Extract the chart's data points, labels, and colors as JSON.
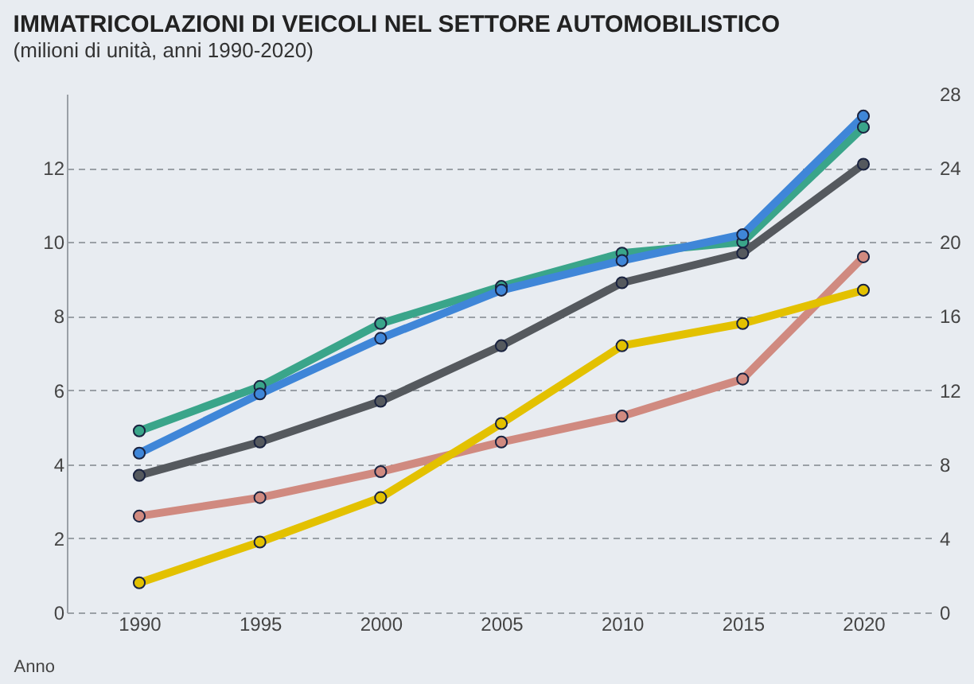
{
  "chart_data": {
    "type": "line",
    "title": "IMMATRICOLAZIONI DI VEICOLI NEL SETTORE AUTOMOBILISTICO",
    "subtitle": "(milioni di unità, anni 1990-2020)",
    "xlabel": "Anno",
    "x": [
      1990,
      1995,
      2000,
      2005,
      2010,
      2015,
      2020
    ],
    "series": [
      {
        "color": "#3aa58a",
        "values": [
          4.9,
          6.1,
          7.8,
          8.8,
          9.7,
          10.0,
          13.1
        ]
      },
      {
        "color": "#3f86d8",
        "values": [
          4.3,
          5.9,
          7.4,
          8.7,
          9.5,
          10.2,
          13.4
        ]
      },
      {
        "color": "#55595e",
        "values": [
          3.7,
          4.6,
          5.7,
          7.2,
          8.9,
          9.7,
          12.1
        ]
      },
      {
        "color": "#d08a80",
        "values": [
          2.6,
          3.1,
          3.8,
          4.6,
          5.3,
          6.3,
          9.6
        ]
      },
      {
        "color": "#e3c100",
        "values": [
          0.8,
          1.9,
          3.1,
          5.1,
          7.2,
          7.8,
          8.7
        ]
      }
    ],
    "xlim": [
      1987,
      2023
    ],
    "xticks": [
      1990,
      1995,
      2000,
      2005,
      2010,
      2015,
      2020
    ],
    "ylim": [
      0,
      14
    ],
    "yticks": [
      0,
      2,
      4,
      6,
      8,
      10,
      12
    ],
    "y2lim": [
      0,
      28
    ],
    "y2ticks": [
      0,
      4,
      8,
      12,
      16,
      20,
      24,
      28
    ],
    "grid": "y",
    "marker": "circle",
    "legend": false
  }
}
